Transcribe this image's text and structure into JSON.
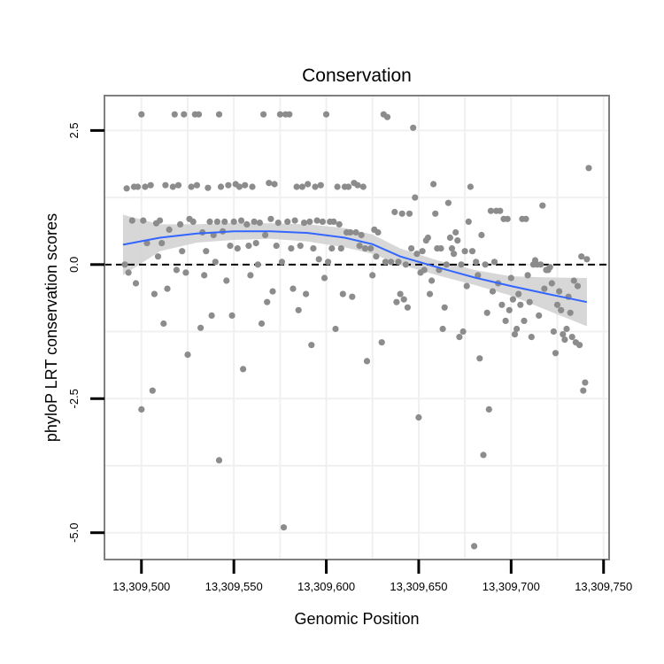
{
  "chart_data": {
    "type": "scatter",
    "title": "Conservation",
    "xlabel": "Genomic Position",
    "ylabel": "phyloP LRT conservation scores",
    "xlim": [
      13309480,
      13309753
    ],
    "ylim": [
      -5.5,
      3.15
    ],
    "xticks": [
      13309500,
      13309550,
      13309600,
      13309650,
      13309700,
      13309750
    ],
    "xtick_labels": [
      "13,309,500",
      "13,309,550",
      "13,309,600",
      "13,309,650",
      "13,309,700",
      "13,309,750"
    ],
    "yticks": [
      2.5,
      0,
      -2.5,
      -5
    ],
    "ytick_labels": [
      "2.5",
      "0.0",
      "-2.5",
      "-5.0"
    ],
    "reference_line": {
      "y": 0,
      "style": "dashed"
    },
    "grid": true,
    "colors": {
      "points": "#8c8c8c",
      "smooth": "#3366ff",
      "band": "#d0d0d0",
      "panel_border": "#7f7f7f",
      "grid": "#f0f0f0"
    },
    "smooth": {
      "x": [
        13309490,
        13309510,
        13309530,
        13309550,
        13309570,
        13309590,
        13309610,
        13309625,
        13309640,
        13309660,
        13309680,
        13309700,
        13309720,
        13309741
      ],
      "y": [
        0.37,
        0.5,
        0.58,
        0.62,
        0.62,
        0.59,
        0.5,
        0.38,
        0.15,
        -0.05,
        -0.24,
        -0.4,
        -0.55,
        -0.7
      ],
      "upper": [
        0.93,
        0.75,
        0.75,
        0.78,
        0.77,
        0.75,
        0.68,
        0.56,
        0.3,
        0.08,
        -0.1,
        -0.22,
        -0.24,
        -0.25
      ],
      "lower": [
        -0.2,
        0.25,
        0.41,
        0.46,
        0.48,
        0.43,
        0.32,
        0.2,
        0.0,
        -0.2,
        -0.38,
        -0.58,
        -0.86,
        -1.15
      ]
    },
    "points": [
      {
        "x": 13309491,
        "y": 0.0
      },
      {
        "x": 13309492,
        "y": 1.42
      },
      {
        "x": 13309493,
        "y": -0.15
      },
      {
        "x": 13309495,
        "y": 0.82
      },
      {
        "x": 13309496,
        "y": 1.45
      },
      {
        "x": 13309497,
        "y": -0.35
      },
      {
        "x": 13309498,
        "y": 1.45
      },
      {
        "x": 13309500,
        "y": 2.8
      },
      {
        "x": 13309500,
        "y": -2.7
      },
      {
        "x": 13309501,
        "y": 0.82
      },
      {
        "x": 13309502,
        "y": 1.45
      },
      {
        "x": 13309503,
        "y": 0.4
      },
      {
        "x": 13309505,
        "y": 1.48
      },
      {
        "x": 13309506,
        "y": -2.35
      },
      {
        "x": 13309507,
        "y": -0.55
      },
      {
        "x": 13309508,
        "y": 0.77
      },
      {
        "x": 13309509,
        "y": 0.15
      },
      {
        "x": 13309510,
        "y": 0.82
      },
      {
        "x": 13309511,
        "y": 0.4
      },
      {
        "x": 13309512,
        "y": -1.1
      },
      {
        "x": 13309513,
        "y": 1.48
      },
      {
        "x": 13309514,
        "y": -0.45
      },
      {
        "x": 13309515,
        "y": 0.65
      },
      {
        "x": 13309517,
        "y": 1.45
      },
      {
        "x": 13309518,
        "y": 2.8
      },
      {
        "x": 13309519,
        "y": -0.1
      },
      {
        "x": 13309520,
        "y": 1.48
      },
      {
        "x": 13309521,
        "y": 0.75
      },
      {
        "x": 13309522,
        "y": 0.25
      },
      {
        "x": 13309523,
        "y": 2.8
      },
      {
        "x": 13309524,
        "y": -0.15
      },
      {
        "x": 13309525,
        "y": -1.68
      },
      {
        "x": 13309526,
        "y": 0.85
      },
      {
        "x": 13309527,
        "y": 1.45
      },
      {
        "x": 13309528,
        "y": 0.8
      },
      {
        "x": 13309529,
        "y": 2.8
      },
      {
        "x": 13309530,
        "y": 1.48
      },
      {
        "x": 13309531,
        "y": 2.8
      },
      {
        "x": 13309532,
        "y": -1.18
      },
      {
        "x": 13309533,
        "y": 0.6
      },
      {
        "x": 13309534,
        "y": -0.2
      },
      {
        "x": 13309535,
        "y": 0.25
      },
      {
        "x": 13309536,
        "y": 1.43
      },
      {
        "x": 13309537,
        "y": 0.8
      },
      {
        "x": 13309538,
        "y": -0.95
      },
      {
        "x": 13309539,
        "y": 0.55
      },
      {
        "x": 13309540,
        "y": 0.05
      },
      {
        "x": 13309541,
        "y": 0.8
      },
      {
        "x": 13309542,
        "y": 2.8
      },
      {
        "x": 13309542,
        "y": -3.65
      },
      {
        "x": 13309543,
        "y": 1.45
      },
      {
        "x": 13309544,
        "y": 0.62
      },
      {
        "x": 13309545,
        "y": 0.8
      },
      {
        "x": 13309546,
        "y": -0.3
      },
      {
        "x": 13309547,
        "y": 1.48
      },
      {
        "x": 13309548,
        "y": 0.35
      },
      {
        "x": 13309549,
        "y": -0.95
      },
      {
        "x": 13309550,
        "y": 0.8
      },
      {
        "x": 13309551,
        "y": 1.5
      },
      {
        "x": 13309552,
        "y": 0.3
      },
      {
        "x": 13309553,
        "y": 1.45
      },
      {
        "x": 13309554,
        "y": 0.82
      },
      {
        "x": 13309555,
        "y": -1.95
      },
      {
        "x": 13309556,
        "y": 1.48
      },
      {
        "x": 13309557,
        "y": 0.75
      },
      {
        "x": 13309558,
        "y": 0.35
      },
      {
        "x": 13309559,
        "y": -0.2
      },
      {
        "x": 13309560,
        "y": 1.45
      },
      {
        "x": 13309561,
        "y": 0.8
      },
      {
        "x": 13309562,
        "y": 0.4
      },
      {
        "x": 13309563,
        "y": 0.0
      },
      {
        "x": 13309564,
        "y": 0.78
      },
      {
        "x": 13309565,
        "y": -1.1
      },
      {
        "x": 13309566,
        "y": 2.8
      },
      {
        "x": 13309567,
        "y": 0.55
      },
      {
        "x": 13309568,
        "y": -0.7
      },
      {
        "x": 13309569,
        "y": 1.52
      },
      {
        "x": 13309570,
        "y": 0.85
      },
      {
        "x": 13309571,
        "y": -0.5
      },
      {
        "x": 13309572,
        "y": 1.5
      },
      {
        "x": 13309573,
        "y": 0.35
      },
      {
        "x": 13309574,
        "y": 0.78
      },
      {
        "x": 13309575,
        "y": 2.8
      },
      {
        "x": 13309576,
        "y": 0.05
      },
      {
        "x": 13309577,
        "y": -4.9
      },
      {
        "x": 13309578,
        "y": 2.8
      },
      {
        "x": 13309579,
        "y": 0.8
      },
      {
        "x": 13309580,
        "y": 2.8
      },
      {
        "x": 13309581,
        "y": 0.3
      },
      {
        "x": 13309582,
        "y": -0.45
      },
      {
        "x": 13309583,
        "y": 0.82
      },
      {
        "x": 13309584,
        "y": 1.45
      },
      {
        "x": 13309585,
        "y": -0.85
      },
      {
        "x": 13309586,
        "y": 0.35
      },
      {
        "x": 13309587,
        "y": 1.45
      },
      {
        "x": 13309588,
        "y": 0.78
      },
      {
        "x": 13309589,
        "y": -0.55
      },
      {
        "x": 13309590,
        "y": 1.5
      },
      {
        "x": 13309591,
        "y": 0.8
      },
      {
        "x": 13309592,
        "y": -1.5
      },
      {
        "x": 13309593,
        "y": 0.3
      },
      {
        "x": 13309594,
        "y": 1.45
      },
      {
        "x": 13309595,
        "y": 0.82
      },
      {
        "x": 13309596,
        "y": 0.1
      },
      {
        "x": 13309597,
        "y": 1.48
      },
      {
        "x": 13309598,
        "y": 0.8
      },
      {
        "x": 13309599,
        "y": -0.25
      },
      {
        "x": 13309600,
        "y": 2.8
      },
      {
        "x": 13309601,
        "y": 0.05
      },
      {
        "x": 13309602,
        "y": 0.8
      },
      {
        "x": 13309603,
        "y": 0.3
      },
      {
        "x": 13309604,
        "y": 0.8
      },
      {
        "x": 13309605,
        "y": -1.2
      },
      {
        "x": 13309606,
        "y": 1.45
      },
      {
        "x": 13309607,
        "y": 0.75
      },
      {
        "x": 13309608,
        "y": 0.3
      },
      {
        "x": 13309609,
        "y": -0.55
      },
      {
        "x": 13309610,
        "y": 1.45
      },
      {
        "x": 13309611,
        "y": 0.6
      },
      {
        "x": 13309612,
        "y": 1.45
      },
      {
        "x": 13309613,
        "y": 0.6
      },
      {
        "x": 13309614,
        "y": -0.6
      },
      {
        "x": 13309615,
        "y": 1.52
      },
      {
        "x": 13309616,
        "y": 0.6
      },
      {
        "x": 13309617,
        "y": 1.48
      },
      {
        "x": 13309618,
        "y": 0.35
      },
      {
        "x": 13309619,
        "y": 0.55
      },
      {
        "x": 13309620,
        "y": 1.45
      },
      {
        "x": 13309621,
        "y": 0.3
      },
      {
        "x": 13309622,
        "y": -1.8
      },
      {
        "x": 13309624,
        "y": 0.3
      },
      {
        "x": 13309625,
        "y": -0.2
      },
      {
        "x": 13309626,
        "y": 0.65
      },
      {
        "x": 13309627,
        "y": 0.15
      },
      {
        "x": 13309628,
        "y": 0.6
      },
      {
        "x": 13309630,
        "y": -1.45
      },
      {
        "x": 13309631,
        "y": 2.8
      },
      {
        "x": 13309632,
        "y": 0.05
      },
      {
        "x": 13309633,
        "y": 2.75
      },
      {
        "x": 13309635,
        "y": 0.05
      },
      {
        "x": 13309637,
        "y": 0.98
      },
      {
        "x": 13309638,
        "y": -0.7
      },
      {
        "x": 13309639,
        "y": 0.05
      },
      {
        "x": 13309640,
        "y": -0.55
      },
      {
        "x": 13309641,
        "y": 0.95
      },
      {
        "x": 13309642,
        "y": -0.65
      },
      {
        "x": 13309643,
        "y": 0.0
      },
      {
        "x": 13309644,
        "y": -0.8
      },
      {
        "x": 13309645,
        "y": 0.95
      },
      {
        "x": 13309646,
        "y": 0.3
      },
      {
        "x": 13309647,
        "y": 2.55
      },
      {
        "x": 13309648,
        "y": 1.25
      },
      {
        "x": 13309649,
        "y": 0.2
      },
      {
        "x": 13309650,
        "y": -2.85
      },
      {
        "x": 13309651,
        "y": -0.15
      },
      {
        "x": 13309652,
        "y": 0.25
      },
      {
        "x": 13309653,
        "y": -0.1
      },
      {
        "x": 13309654,
        "y": 0.45
      },
      {
        "x": 13309655,
        "y": 0.5
      },
      {
        "x": 13309656,
        "y": -0.55
      },
      {
        "x": 13309657,
        "y": -0.3
      },
      {
        "x": 13309658,
        "y": 1.5
      },
      {
        "x": 13309659,
        "y": 0.95
      },
      {
        "x": 13309660,
        "y": 0.3
      },
      {
        "x": 13309661,
        "y": -0.1
      },
      {
        "x": 13309662,
        "y": 0.3
      },
      {
        "x": 13309663,
        "y": -1.2
      },
      {
        "x": 13309664,
        "y": -0.8
      },
      {
        "x": 13309665,
        "y": 0.0
      },
      {
        "x": 13309666,
        "y": 1.15
      },
      {
        "x": 13309667,
        "y": 0.5
      },
      {
        "x": 13309668,
        "y": 0.3
      },
      {
        "x": 13309669,
        "y": 0.2
      },
      {
        "x": 13309670,
        "y": 0.6
      },
      {
        "x": 13309671,
        "y": 0.45
      },
      {
        "x": 13309672,
        "y": -1.35
      },
      {
        "x": 13309673,
        "y": 0.0
      },
      {
        "x": 13309674,
        "y": -1.25
      },
      {
        "x": 13309675,
        "y": 0.25
      },
      {
        "x": 13309676,
        "y": -0.4
      },
      {
        "x": 13309677,
        "y": 0.8
      },
      {
        "x": 13309678,
        "y": 1.45
      },
      {
        "x": 13309679,
        "y": 0.25
      },
      {
        "x": 13309680,
        "y": -5.25
      },
      {
        "x": 13309681,
        "y": 0.05
      },
      {
        "x": 13309682,
        "y": -0.2
      },
      {
        "x": 13309683,
        "y": -1.75
      },
      {
        "x": 13309684,
        "y": 0.55
      },
      {
        "x": 13309685,
        "y": -3.55
      },
      {
        "x": 13309686,
        "y": 0.0
      },
      {
        "x": 13309687,
        "y": -0.9
      },
      {
        "x": 13309688,
        "y": -2.7
      },
      {
        "x": 13309689,
        "y": 1.0
      },
      {
        "x": 13309690,
        "y": -0.5
      },
      {
        "x": 13309691,
        "y": 0.05
      },
      {
        "x": 13309692,
        "y": 1.0
      },
      {
        "x": 13309693,
        "y": -0.35
      },
      {
        "x": 13309694,
        "y": 1.0
      },
      {
        "x": 13309695,
        "y": -0.75
      },
      {
        "x": 13309696,
        "y": 0.85
      },
      {
        "x": 13309697,
        "y": -1.05
      },
      {
        "x": 13309698,
        "y": 0.85
      },
      {
        "x": 13309699,
        "y": -0.85
      },
      {
        "x": 13309700,
        "y": -0.25
      },
      {
        "x": 13309701,
        "y": -0.65
      },
      {
        "x": 13309702,
        "y": -1.3
      },
      {
        "x": 13309703,
        "y": -1.2
      },
      {
        "x": 13309704,
        "y": -0.55
      },
      {
        "x": 13309705,
        "y": -0.75
      },
      {
        "x": 13309706,
        "y": 0.85
      },
      {
        "x": 13309707,
        "y": -1.05
      },
      {
        "x": 13309708,
        "y": 0.85
      },
      {
        "x": 13309709,
        "y": -0.2
      },
      {
        "x": 13309710,
        "y": -0.7
      },
      {
        "x": 13309711,
        "y": -1.35
      },
      {
        "x": 13309712,
        "y": 0.0
      },
      {
        "x": 13309713,
        "y": 0.08
      },
      {
        "x": 13309714,
        "y": 0.0
      },
      {
        "x": 13309715,
        "y": -0.95
      },
      {
        "x": 13309716,
        "y": 0.0
      },
      {
        "x": 13309717,
        "y": 1.1
      },
      {
        "x": 13309718,
        "y": -0.45
      },
      {
        "x": 13309719,
        "y": -0.1
      },
      {
        "x": 13309720,
        "y": -0.1
      },
      {
        "x": 13309721,
        "y": -0.05
      },
      {
        "x": 13309722,
        "y": -0.35
      },
      {
        "x": 13309723,
        "y": -1.25
      },
      {
        "x": 13309724,
        "y": -1.65
      },
      {
        "x": 13309725,
        "y": -0.75
      },
      {
        "x": 13309726,
        "y": -0.5
      },
      {
        "x": 13309727,
        "y": -0.85
      },
      {
        "x": 13309728,
        "y": -1.3
      },
      {
        "x": 13309729,
        "y": -1.4
      },
      {
        "x": 13309730,
        "y": -1.2
      },
      {
        "x": 13309731,
        "y": -0.6
      },
      {
        "x": 13309732,
        "y": -0.9
      },
      {
        "x": 13309733,
        "y": -1.35
      },
      {
        "x": 13309734,
        "y": -0.3
      },
      {
        "x": 13309735,
        "y": -1.45
      },
      {
        "x": 13309736,
        "y": -0.4
      },
      {
        "x": 13309737,
        "y": -1.5
      },
      {
        "x": 13309738,
        "y": 0.15
      },
      {
        "x": 13309739,
        "y": -2.35
      },
      {
        "x": 13309740,
        "y": -2.2
      },
      {
        "x": 13309741,
        "y": 0.1
      },
      {
        "x": 13309742,
        "y": 1.8
      }
    ]
  }
}
